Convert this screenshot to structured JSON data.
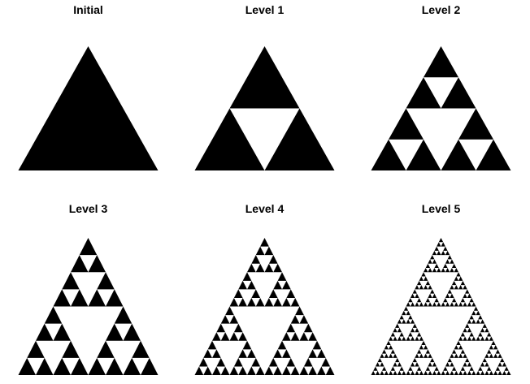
{
  "panels": [
    {
      "title": "Initial",
      "level": 0
    },
    {
      "title": "Level 1",
      "level": 1
    },
    {
      "title": "Level 2",
      "level": 2
    },
    {
      "title": "Level 3",
      "level": 3
    },
    {
      "title": "Level 4",
      "level": 4
    },
    {
      "title": "Level 5",
      "level": 5
    }
  ],
  "colors": {
    "fill": "#000000",
    "background": "#ffffff"
  }
}
